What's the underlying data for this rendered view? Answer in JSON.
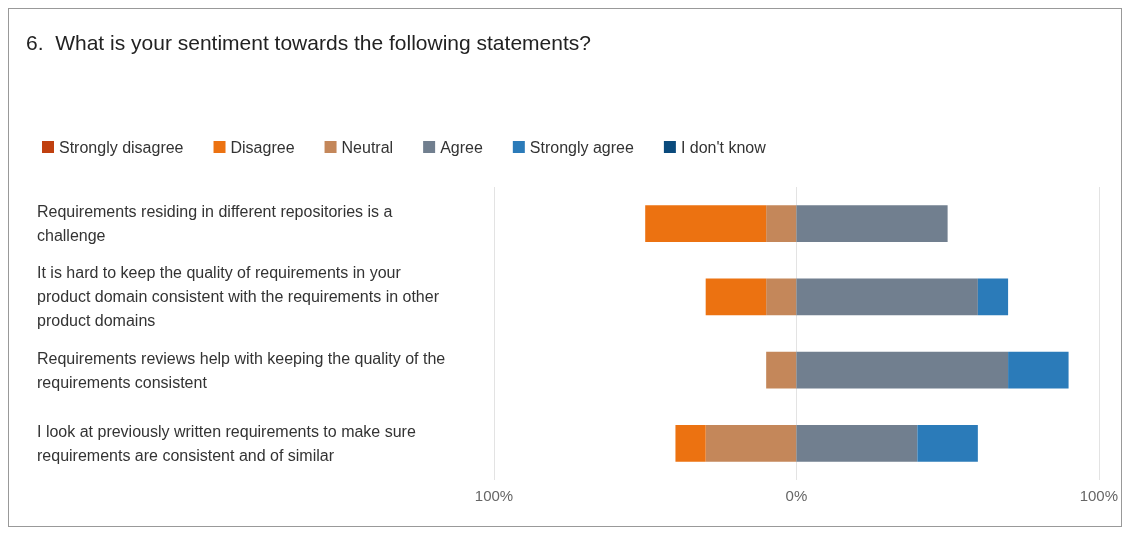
{
  "chart_data": {
    "type": "bar",
    "orientation": "horizontal",
    "stacked": true,
    "title": "6.  What is your sentiment towards the following statements?",
    "categories": [
      "Requirements residing in different repositories is a challenge",
      "It is hard to keep the quality of requirements in your product domain consistent with the requirements in other product domains",
      "Requirements reviews help with keeping the quality of the requirements consistent",
      "I look at previously written requirements to make sure requirements are consistent and of similar"
    ],
    "series": [
      {
        "name": "Strongly disagree",
        "color": "#c0400f",
        "values": [
          0,
          0,
          0,
          0
        ]
      },
      {
        "name": "Disagree",
        "color": "#ec7211",
        "values": [
          -40,
          -20,
          0,
          -10
        ]
      },
      {
        "name": "Neutral",
        "color": "#c4875a",
        "values": [
          -10,
          -10,
          -10,
          -30
        ]
      },
      {
        "name": "Agree",
        "color": "#717f8f",
        "values": [
          50,
          60,
          70,
          40
        ]
      },
      {
        "name": "Strongly agree",
        "color": "#2b7bb9",
        "values": [
          0,
          10,
          20,
          20
        ]
      },
      {
        "name": "I don't know",
        "color": "#0a4a7c",
        "values": [
          0,
          0,
          0,
          0
        ]
      }
    ],
    "xlim": [
      -100,
      100
    ],
    "xticks": [
      {
        "value": -100,
        "label": "100%"
      },
      {
        "value": 0,
        "label": "0%"
      },
      {
        "value": 100,
        "label": "100%"
      }
    ],
    "grid": "x",
    "legend": "top left"
  }
}
